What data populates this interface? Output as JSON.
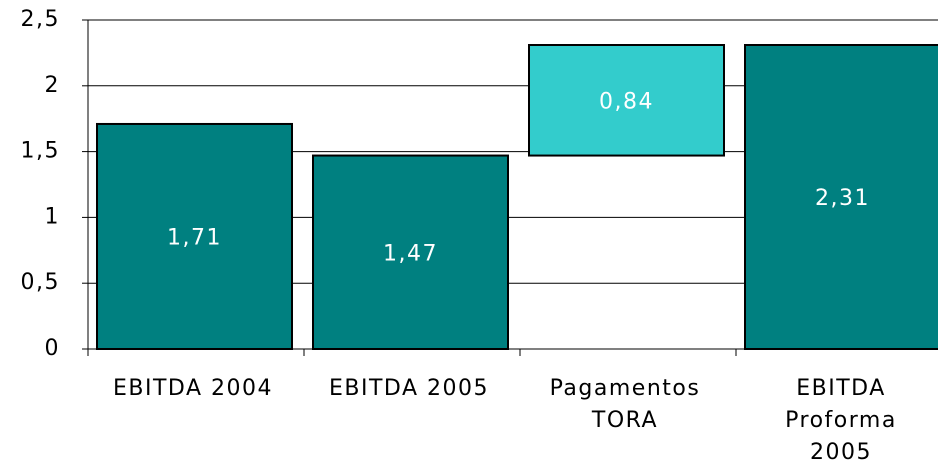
{
  "chart_data": {
    "type": "waterfall",
    "categories": [
      "EBITDA 2004",
      "EBITDA 2005",
      "Pagamentos\nTORA",
      "EBITDA\nProforma\n2005"
    ],
    "values": [
      1.71,
      1.47,
      0.84,
      2.31
    ],
    "value_labels": [
      "1,71",
      "1,47",
      "0,84",
      "2,31"
    ],
    "measure": [
      "absolute",
      "absolute",
      "relative",
      "absolute"
    ],
    "colors": [
      "#008080",
      "#008080",
      "#33cccc",
      "#008080"
    ],
    "ylim": [
      0,
      2.5
    ],
    "yticks": [
      0,
      {
        "value": 0.5,
        "label": "0,5"
      },
      1,
      {
        "value": 1.5,
        "label": "1,5"
      },
      2,
      {
        "value": 2.5,
        "label": "2,5"
      }
    ],
    "grid": true
  }
}
